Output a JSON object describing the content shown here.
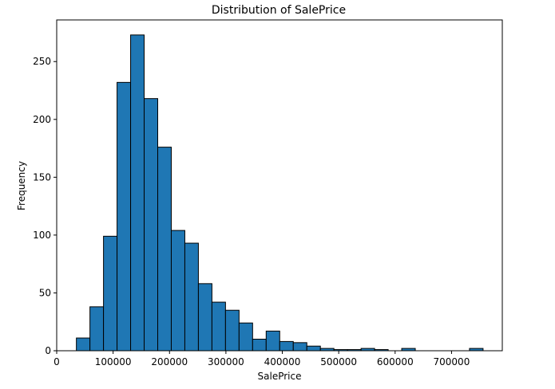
{
  "chart_data": {
    "type": "bar",
    "title": "Distribution of SalePrice",
    "xlabel": "SalePrice",
    "ylabel": "Frequency",
    "xlim": [
      0,
      790000
    ],
    "ylim": [
      0,
      286
    ],
    "grid": false,
    "bar_color": "#1f77b4",
    "edge_color": "#000000",
    "bins": [
      {
        "x0": 34900,
        "x1": 58933,
        "count": 11
      },
      {
        "x0": 58933,
        "x1": 82967,
        "count": 38
      },
      {
        "x0": 82967,
        "x1": 107000,
        "count": 99
      },
      {
        "x0": 107000,
        "x1": 131033,
        "count": 232
      },
      {
        "x0": 131033,
        "x1": 155067,
        "count": 273
      },
      {
        "x0": 155067,
        "x1": 179100,
        "count": 218
      },
      {
        "x0": 179100,
        "x1": 203133,
        "count": 176
      },
      {
        "x0": 203133,
        "x1": 227167,
        "count": 104
      },
      {
        "x0": 227167,
        "x1": 251200,
        "count": 93
      },
      {
        "x0": 251200,
        "x1": 275233,
        "count": 58
      },
      {
        "x0": 275233,
        "x1": 299267,
        "count": 42
      },
      {
        "x0": 299267,
        "x1": 323300,
        "count": 35
      },
      {
        "x0": 323300,
        "x1": 347333,
        "count": 24
      },
      {
        "x0": 347333,
        "x1": 371367,
        "count": 10
      },
      {
        "x0": 371367,
        "x1": 395400,
        "count": 17
      },
      {
        "x0": 395400,
        "x1": 419433,
        "count": 8
      },
      {
        "x0": 419433,
        "x1": 443467,
        "count": 7
      },
      {
        "x0": 443467,
        "x1": 467500,
        "count": 4
      },
      {
        "x0": 467500,
        "x1": 491533,
        "count": 2
      },
      {
        "x0": 491533,
        "x1": 515567,
        "count": 1
      },
      {
        "x0": 515567,
        "x1": 539600,
        "count": 1
      },
      {
        "x0": 539600,
        "x1": 563633,
        "count": 2
      },
      {
        "x0": 563633,
        "x1": 587667,
        "count": 1
      },
      {
        "x0": 587667,
        "x1": 611700,
        "count": 0
      },
      {
        "x0": 611700,
        "x1": 635733,
        "count": 2
      },
      {
        "x0": 635733,
        "x1": 659767,
        "count": 0
      },
      {
        "x0": 659767,
        "x1": 683800,
        "count": 0
      },
      {
        "x0": 683800,
        "x1": 707833,
        "count": 0
      },
      {
        "x0": 707833,
        "x1": 731867,
        "count": 0
      },
      {
        "x0": 731867,
        "x1": 755900,
        "count": 2
      }
    ],
    "x_ticks": [
      0,
      100000,
      200000,
      300000,
      400000,
      500000,
      600000,
      700000
    ],
    "x_tick_labels": [
      "0",
      "100000",
      "200000",
      "300000",
      "400000",
      "500000",
      "600000",
      "700000"
    ],
    "y_ticks": [
      0,
      50,
      100,
      150,
      200,
      250
    ],
    "y_tick_labels": [
      "0",
      "50",
      "100",
      "150",
      "200",
      "250"
    ]
  }
}
